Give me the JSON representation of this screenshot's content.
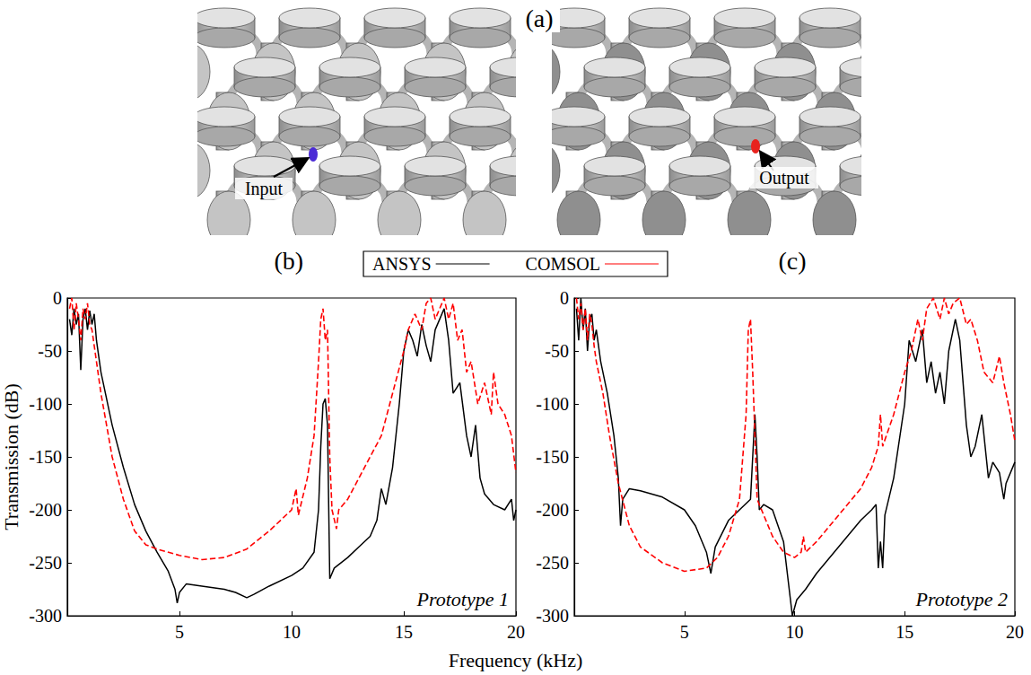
{
  "diagram": {
    "label": "(a)",
    "input": "Input",
    "output": "Output"
  },
  "chart_data": {
    "type": "line",
    "xlabel": "Frequency (kHz)",
    "ylabel": "Transmission (dB)",
    "xlim": [
      0,
      20
    ],
    "xticks": [
      5,
      10,
      15,
      20
    ],
    "ylim": [
      -300,
      0
    ],
    "yticks": [
      0,
      -50,
      -100,
      -150,
      -200,
      -250,
      -300
    ],
    "grid": false,
    "legend": "top",
    "panels": [
      {
        "label": "(b)",
        "annotation": "Prototype 1",
        "series": [
          {
            "name": "ANSYS",
            "color": "#000000",
            "line_style": "solid",
            "x": [
              0.1,
              0.2,
              0.3,
              0.4,
              0.5,
              0.6,
              0.7,
              0.8,
              0.9,
              1.0,
              1.1,
              1.2,
              1.3,
              1.5,
              2,
              2.5,
              3,
              3.5,
              4,
              4.5,
              4.8,
              4.9,
              5.0,
              5.3,
              6,
              7,
              7.5,
              8,
              8.3,
              9,
              10,
              10.5,
              11,
              11.2,
              11.3,
              11.4,
              11.5,
              11.6,
              11.7,
              11.9,
              12.5,
              13,
              13.5,
              13.8,
              14,
              14.2,
              14.5,
              14.8,
              15,
              15.2,
              15.4,
              15.6,
              15.8,
              16,
              16.2,
              16.4,
              16.6,
              16.8,
              17,
              17.2,
              17.5,
              17.8,
              18,
              18.2,
              18.4,
              18.6,
              19,
              19.5,
              19.8,
              19.9,
              20
            ],
            "values": [
              -20,
              -35,
              -10,
              -25,
              -15,
              -68,
              -20,
              -10,
              -30,
              -12,
              -25,
              -15,
              -40,
              -70,
              -120,
              -160,
              -195,
              -220,
              -240,
              -258,
              -275,
              -288,
              -278,
              -270,
              -272,
              -275,
              -278,
              -283,
              -280,
              -272,
              -262,
              -255,
              -240,
              -200,
              -140,
              -100,
              -95,
              -120,
              -265,
              -255,
              -245,
              -235,
              -225,
              -210,
              -180,
              -195,
              -160,
              -100,
              -50,
              -30,
              -40,
              -55,
              -25,
              -45,
              -60,
              -30,
              -20,
              -10,
              -40,
              -90,
              -80,
              -130,
              -150,
              -120,
              -170,
              -185,
              -195,
              -200,
              -190,
              -210,
              -200
            ]
          },
          {
            "name": "COMSOL",
            "color": "#ff0000",
            "line_style": "dashed",
            "x": [
              0.1,
              0.2,
              0.3,
              0.4,
              0.5,
              0.6,
              0.7,
              0.8,
              0.9,
              1.0,
              1.1,
              1.2,
              1.3,
              1.5,
              2,
              2.5,
              3,
              3.5,
              4,
              5,
              6,
              7,
              8,
              9,
              9.5,
              10,
              10.2,
              10.3,
              10.7,
              11,
              11.2,
              11.3,
              11.4,
              11.5,
              11.6,
              11.7,
              11.8,
              12,
              12.1,
              12.5,
              13,
              13.5,
              14,
              14.5,
              15,
              15.2,
              15.5,
              15.8,
              16,
              16.2,
              16.4,
              16.6,
              16.8,
              17,
              17.2,
              17.4,
              17.6,
              17.8,
              18,
              18.3,
              18.6,
              18.9,
              19,
              19.2,
              19.5,
              19.8,
              20
            ],
            "values": [
              -10,
              0,
              -30,
              -5,
              -20,
              -40,
              -10,
              -20,
              -5,
              -25,
              -30,
              -45,
              -60,
              -90,
              -150,
              -190,
              -220,
              -233,
              -237,
              -243,
              -247,
              -245,
              -237,
              -220,
              -210,
              -200,
              -180,
              -205,
              -170,
              -130,
              -60,
              -20,
              -10,
              -40,
              -30,
              -150,
              -200,
              -218,
              -200,
              -190,
              -170,
              -150,
              -130,
              -90,
              -50,
              -30,
              -15,
              -30,
              -5,
              0,
              -20,
              -10,
              0,
              -20,
              -5,
              -40,
              -30,
              -70,
              -60,
              -100,
              -80,
              -110,
              -70,
              -100,
              -110,
              -130,
              -165
            ]
          }
        ]
      },
      {
        "label": "(c)",
        "annotation": "Prototype 2",
        "series": [
          {
            "name": "ANSYS",
            "color": "#000000",
            "line_style": "solid",
            "x": [
              0.1,
              0.2,
              0.3,
              0.4,
              0.5,
              0.6,
              0.7,
              0.8,
              0.9,
              1,
              1.2,
              1.5,
              1.8,
              2,
              2.1,
              2.2,
              2.5,
              3,
              4,
              5,
              5.5,
              6,
              6.2,
              6.4,
              7,
              7.5,
              8,
              8.1,
              8.2,
              8.3,
              8.4,
              8.6,
              9,
              9.5,
              9.9,
              10.1,
              10.5,
              11,
              12,
              13,
              13.5,
              13.7,
              13.8,
              13.9,
              14,
              14.1,
              14.5,
              15,
              15.2,
              15.5,
              15.8,
              16,
              16.2,
              16.4,
              16.6,
              16.8,
              17,
              17.3,
              17.5,
              17.8,
              18,
              18.2,
              18.5,
              18.8,
              19,
              19.3,
              19.5,
              19.6,
              20
            ],
            "values": [
              -10,
              -40,
              0,
              -30,
              -10,
              -50,
              -20,
              -15,
              -40,
              -30,
              -60,
              -90,
              -130,
              -170,
              -215,
              -190,
              -180,
              -182,
              -188,
              -200,
              -215,
              -240,
              -260,
              -235,
              -210,
              -200,
              -190,
              -150,
              -110,
              -150,
              -200,
              -195,
              -200,
              -230,
              -300,
              -285,
              -275,
              -260,
              -235,
              -210,
              -200,
              -195,
              -255,
              -230,
              -255,
              -205,
              -170,
              -100,
              -40,
              -60,
              -30,
              -80,
              -60,
              -90,
              -70,
              -100,
              -50,
              -20,
              -40,
              -120,
              -150,
              -140,
              -110,
              -170,
              -155,
              -165,
              -190,
              -175,
              -155
            ]
          },
          {
            "name": "COMSOL",
            "color": "#ff0000",
            "line_style": "dashed",
            "x": [
              0.1,
              0.2,
              0.3,
              0.4,
              0.5,
              0.6,
              0.7,
              0.8,
              0.9,
              1,
              1.3,
              1.6,
              2,
              2.5,
              3,
              4,
              5,
              6,
              6.5,
              7,
              7.5,
              7.8,
              7.9,
              8.0,
              8.1,
              8.3,
              9,
              9.5,
              10,
              10.3,
              10.4,
              10.5,
              11,
              12,
              13,
              13.5,
              13.8,
              13.9,
              14,
              14.5,
              15,
              15.3,
              15.6,
              15.8,
              16,
              16.3,
              16.6,
              16.8,
              17,
              17.2,
              17.5,
              17.8,
              18,
              18.3,
              18.6,
              19,
              19.3,
              19.5,
              19.8,
              20
            ],
            "values": [
              0,
              -20,
              -5,
              -30,
              -10,
              -40,
              -15,
              -25,
              -45,
              -60,
              -90,
              -130,
              -175,
              -215,
              -235,
              -250,
              -258,
              -255,
              -245,
              -225,
              -190,
              -110,
              -30,
              -20,
              -70,
              -190,
              -225,
              -240,
              -245,
              -240,
              -225,
              -240,
              -230,
              -205,
              -180,
              -160,
              -140,
              -110,
              -140,
              -110,
              -70,
              -50,
              -20,
              -40,
              -10,
              0,
              -20,
              0,
              -15,
              -5,
              0,
              -25,
              -20,
              -40,
              -70,
              -80,
              -55,
              -80,
              -110,
              -135
            ]
          }
        ]
      }
    ]
  }
}
